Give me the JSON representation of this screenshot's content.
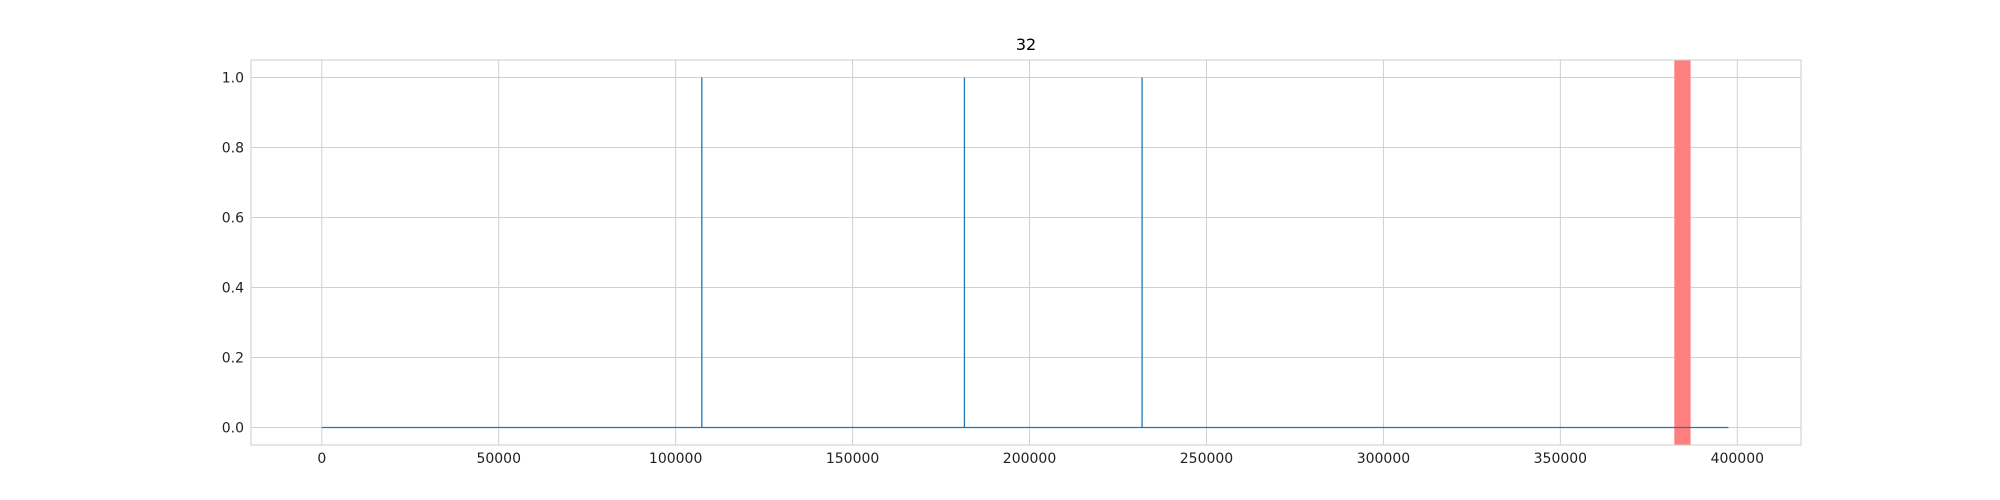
{
  "chart_data": {
    "type": "line",
    "title": "32",
    "xlabel": "",
    "ylabel": "",
    "xlim": [
      -20000,
      418000
    ],
    "ylim": [
      -0.05,
      1.05
    ],
    "x_ticks": [
      0,
      50000,
      100000,
      150000,
      200000,
      250000,
      300000,
      350000,
      400000
    ],
    "x_tick_labels": [
      "0",
      "50000",
      "100000",
      "150000",
      "200000",
      "250000",
      "300000",
      "350000",
      "400000"
    ],
    "y_ticks": [
      0.0,
      0.2,
      0.4,
      0.6,
      0.8,
      1.0
    ],
    "y_tick_labels": [
      "0.0",
      "0.2",
      "0.4",
      "0.6",
      "0.8",
      "1.0"
    ],
    "grid": true,
    "series": [
      {
        "color": "#1f77b4",
        "x": [
          0,
          107400,
          107400,
          107400,
          181600,
          181600,
          181600,
          231800,
          231800,
          231800,
          397500
        ],
        "y": [
          0,
          0,
          1,
          0,
          0,
          1,
          0,
          0,
          1,
          0,
          0
        ]
      }
    ],
    "highlight_spans": [
      {
        "x_start": 382200,
        "x_end": 386800,
        "color": "#ff7f7f"
      }
    ]
  }
}
